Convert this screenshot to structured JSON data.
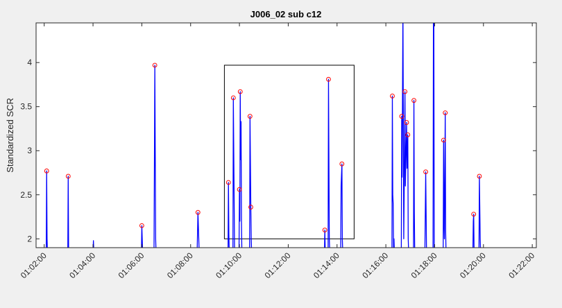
{
  "chart_data": {
    "type": "line",
    "title": "J006_02 sub c12",
    "xlabel": "",
    "ylabel": "Standardized SCR",
    "x_unit": "time (hh:mm:ss)",
    "xlim": [
      "01:01:40",
      "01:22:10"
    ],
    "ylim": [
      1.9,
      4.45
    ],
    "x_ticks": [
      "01:02:00",
      "01:04:00",
      "01:06:00",
      "01:08:00",
      "01:10:00",
      "01:12:00",
      "01:14:00",
      "01:16:00",
      "01:18:00",
      "01:20:00",
      "01:22:00"
    ],
    "y_ticks": [
      2,
      2.5,
      3,
      3.5,
      4
    ],
    "y_tick_labels": [
      "2",
      "2.5",
      "3",
      "3.5",
      "4"
    ],
    "grid": false,
    "legend": "none",
    "colors": {
      "line": "#0000ff",
      "peak_marker": "#ff0000",
      "axes": "#262626",
      "box": "#000000",
      "figure_bg": "#f0f0f0",
      "axes_bg": "#ffffff"
    },
    "series": [
      {
        "values_note": "blue trace drops below the visible y range between peaks",
        "points": [
          [
            "01:02:05",
            1.85
          ],
          [
            "01:02:06",
            2.77
          ],
          [
            "01:02:07",
            2.0
          ],
          [
            "01:02:08",
            1.85
          ],
          [
            "01:02:58",
            1.85
          ],
          [
            "01:02:59",
            2.71
          ],
          [
            "01:03:00",
            1.85
          ],
          [
            "01:04:00",
            1.85
          ],
          [
            "01:04:01",
            1.98
          ],
          [
            "01:04:02",
            1.85
          ],
          [
            "01:05:59",
            1.85
          ],
          [
            "01:06:00",
            2.15
          ],
          [
            "01:06:02",
            1.85
          ],
          [
            "01:06:30",
            1.85
          ],
          [
            "01:06:32",
            3.97
          ],
          [
            "01:06:34",
            2.0
          ],
          [
            "01:06:35",
            1.85
          ],
          [
            "01:08:16",
            1.85
          ],
          [
            "01:08:18",
            2.3
          ],
          [
            "01:08:21",
            1.85
          ],
          [
            "01:09:32",
            1.85
          ],
          [
            "01:09:33",
            2.64
          ],
          [
            "01:09:34",
            2.05
          ],
          [
            "01:09:35",
            1.85
          ],
          [
            "01:09:44",
            1.85
          ],
          [
            "01:09:45",
            3.6
          ],
          [
            "01:09:47",
            2.45
          ],
          [
            "01:09:48",
            1.85
          ],
          [
            "01:09:59",
            1.85
          ],
          [
            "01:10:00",
            2.56
          ],
          [
            "01:10:01",
            2.2
          ],
          [
            "01:10:02",
            3.67
          ],
          [
            "01:10:03",
            2.9
          ],
          [
            "01:10:04",
            3.33
          ],
          [
            "01:10:05",
            2.2
          ],
          [
            "01:10:06",
            1.85
          ],
          [
            "01:10:25",
            1.85
          ],
          [
            "01:10:26",
            3.39
          ],
          [
            "01:10:28",
            2.36
          ],
          [
            "01:10:29",
            2.0
          ],
          [
            "01:10:30",
            1.85
          ],
          [
            "01:13:29",
            1.85
          ],
          [
            "01:13:30",
            2.1
          ],
          [
            "01:13:31",
            1.85
          ],
          [
            "01:13:38",
            1.85
          ],
          [
            "01:13:39",
            3.81
          ],
          [
            "01:13:41",
            2.0
          ],
          [
            "01:13:42",
            1.85
          ],
          [
            "01:14:09",
            1.85
          ],
          [
            "01:14:10",
            2.6
          ],
          [
            "01:14:12",
            2.85
          ],
          [
            "01:14:13",
            2.0
          ],
          [
            "01:14:14",
            1.85
          ],
          [
            "01:16:15",
            1.85
          ],
          [
            "01:16:16",
            3.62
          ],
          [
            "01:16:17",
            2.5
          ],
          [
            "01:16:18",
            2.4
          ],
          [
            "01:16:19",
            1.85
          ],
          [
            "01:16:20",
            2.0
          ],
          [
            "01:16:21",
            1.85
          ],
          [
            "01:16:38",
            1.85
          ],
          [
            "01:16:39",
            3.39
          ],
          [
            "01:16:40",
            2.7
          ],
          [
            "01:16:42",
            4.6
          ],
          [
            "01:16:43",
            3.4
          ],
          [
            "01:16:44",
            2.0
          ],
          [
            "01:16:45",
            2.5
          ],
          [
            "01:16:47",
            3.67
          ],
          [
            "01:16:48",
            2.6
          ],
          [
            "01:16:51",
            3.32
          ],
          [
            "01:16:52",
            2.8
          ],
          [
            "01:16:54",
            3.18
          ],
          [
            "01:16:55",
            2.0
          ],
          [
            "01:16:56",
            1.85
          ],
          [
            "01:17:08",
            1.85
          ],
          [
            "01:17:09",
            3.57
          ],
          [
            "01:17:10",
            2.3
          ],
          [
            "01:17:11",
            1.85
          ],
          [
            "01:17:36",
            1.85
          ],
          [
            "01:17:38",
            2.76
          ],
          [
            "01:17:40",
            1.85
          ],
          [
            "01:17:56",
            1.85
          ],
          [
            "01:17:57",
            4.6
          ],
          [
            "01:17:58",
            4.5
          ],
          [
            "01:17:59",
            1.85
          ],
          [
            "01:18:21",
            1.85
          ],
          [
            "01:18:22",
            3.12
          ],
          [
            "01:18:23",
            2.2
          ],
          [
            "01:18:24",
            2.0
          ],
          [
            "01:18:26",
            3.43
          ],
          [
            "01:18:27",
            2.1
          ],
          [
            "01:18:28",
            1.85
          ],
          [
            "01:19:34",
            1.85
          ],
          [
            "01:19:35",
            2.2
          ],
          [
            "01:19:36",
            2.28
          ],
          [
            "01:19:37",
            1.85
          ],
          [
            "01:19:49",
            1.85
          ],
          [
            "01:19:50",
            2.71
          ],
          [
            "01:19:52",
            2.0
          ],
          [
            "01:19:53",
            1.85
          ]
        ]
      }
    ],
    "peaks": [
      [
        "01:02:06",
        2.77
      ],
      [
        "01:02:59",
        2.71
      ],
      [
        "01:06:00",
        2.15
      ],
      [
        "01:06:32",
        3.97
      ],
      [
        "01:08:18",
        2.3
      ],
      [
        "01:09:33",
        2.64
      ],
      [
        "01:09:45",
        3.6
      ],
      [
        "01:10:00",
        2.56
      ],
      [
        "01:10:02",
        3.67
      ],
      [
        "01:10:26",
        3.39
      ],
      [
        "01:10:28",
        2.36
      ],
      [
        "01:13:30",
        2.1
      ],
      [
        "01:13:39",
        3.81
      ],
      [
        "01:14:12",
        2.85
      ],
      [
        "01:16:16",
        3.62
      ],
      [
        "01:16:39",
        3.39
      ],
      [
        "01:16:47",
        3.67
      ],
      [
        "01:16:51",
        3.32
      ],
      [
        "01:16:54",
        3.18
      ],
      [
        "01:17:09",
        3.57
      ],
      [
        "01:17:38",
        2.76
      ],
      [
        "01:18:22",
        3.12
      ],
      [
        "01:18:26",
        3.43
      ],
      [
        "01:19:36",
        2.28
      ],
      [
        "01:19:50",
        2.71
      ]
    ],
    "annotation_box": {
      "x_range": [
        "01:09:23",
        "01:14:42"
      ],
      "y_range": [
        2.0,
        3.97
      ]
    }
  }
}
